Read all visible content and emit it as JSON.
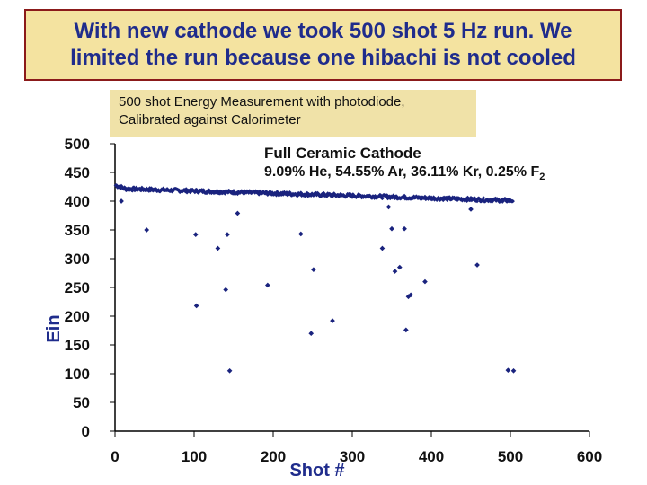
{
  "title": {
    "line1": "With new cathode we took 500 shot 5 Hz run. We",
    "line2": "limited the run because one hibachi is not cooled"
  },
  "caption": {
    "line1": "500 shot Energy Measurement with photodiode,",
    "line2": "Calibrated against Calorimeter"
  },
  "colors": {
    "title_text": "#1f2c8c",
    "title_bg": "#f4e3a0",
    "title_border": "#8b1a1a",
    "caption_bg": "#f0e2a8",
    "series": "#1a237e"
  },
  "chart_data": {
    "type": "scatter",
    "xlabel": "Shot #",
    "ylabel": "Ein",
    "xlim": [
      0,
      600
    ],
    "ylim": [
      0,
      500
    ],
    "xticks": [
      0,
      100,
      200,
      300,
      400,
      500,
      600
    ],
    "yticks": [
      0,
      50,
      100,
      150,
      200,
      250,
      300,
      350,
      400,
      450,
      500
    ],
    "grid": false,
    "annotation": {
      "line1": "Full Ceramic Cathode",
      "line2_prefix": "9.09% He, 54.55% Ar, 36.11% Kr, 0.25% F",
      "line2_subscript": "2"
    },
    "main_band": {
      "x_start": 1,
      "x_end": 503,
      "y_start": 422,
      "y_end": 401
    },
    "outliers": [
      [
        8,
        400
      ],
      [
        40,
        350
      ],
      [
        102,
        342
      ],
      [
        103,
        218
      ],
      [
        130,
        318
      ],
      [
        142,
        342
      ],
      [
        140,
        246
      ],
      [
        145,
        105
      ],
      [
        155,
        379
      ],
      [
        193,
        254
      ],
      [
        235,
        343
      ],
      [
        248,
        170
      ],
      [
        251,
        281
      ],
      [
        275,
        192
      ],
      [
        338,
        318
      ],
      [
        346,
        390
      ],
      [
        350,
        352
      ],
      [
        354,
        278
      ],
      [
        360,
        285
      ],
      [
        366,
        352
      ],
      [
        368,
        176
      ],
      [
        371,
        234
      ],
      [
        374,
        237
      ],
      [
        392,
        260
      ],
      [
        450,
        386
      ],
      [
        458,
        289
      ],
      [
        490,
        400
      ],
      [
        504,
        105
      ],
      [
        497,
        106
      ]
    ]
  }
}
